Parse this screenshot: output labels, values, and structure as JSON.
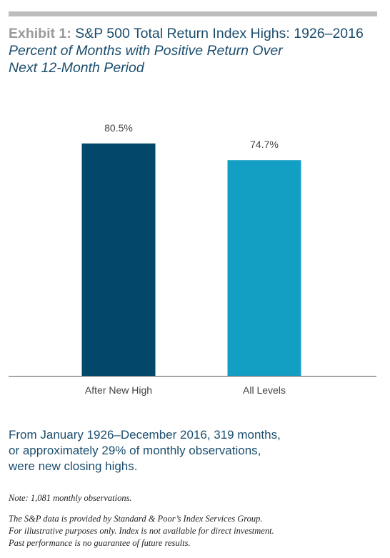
{
  "header": {
    "exhibit_label": "Exhibit 1:",
    "title": "S&P 500 Total Return Index Highs: 1926–2016",
    "subtitle_line1": "Percent of Months with Positive Return Over",
    "subtitle_line2": "Next 12-Month Period"
  },
  "chart_data": {
    "type": "bar",
    "categories": [
      "After New High",
      "All Levels"
    ],
    "values": [
      80.5,
      74.7
    ],
    "value_labels": [
      "80.5%",
      "74.7%"
    ],
    "colors": [
      "#03486b",
      "#139ec4"
    ],
    "ylim": [
      0,
      100
    ],
    "grid": false,
    "xlabel": "",
    "ylabel": ""
  },
  "summary": {
    "line1": "From January 1926–December 2016, 319 months,",
    "line2": "or approximately 29% of monthly observations,",
    "line3": "were new closing highs."
  },
  "note": "Note: 1,081 monthly observations.",
  "disclaimer": {
    "line1": "The S&P data is provided by Standard & Poor’s Index Services Group.",
    "line2": "For illustrative purposes only. Index is not available for direct investment.",
    "line3": "Past performance is no guarantee of future results."
  }
}
